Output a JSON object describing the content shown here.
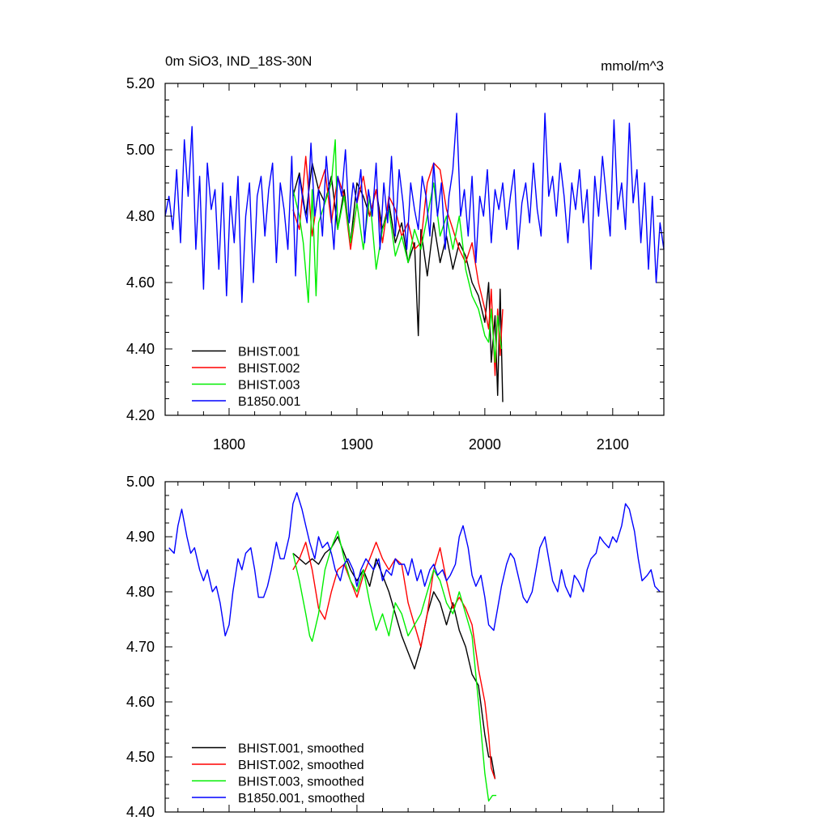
{
  "chart_data": [
    {
      "type": "line",
      "title": "0m SiO3, IND_18S-30N",
      "units": "mmol/m^3",
      "xlim": [
        1750,
        2140
      ],
      "ylim": [
        4.2,
        5.2
      ],
      "x_ticks": [
        1800,
        1900,
        2000,
        2100
      ],
      "y_ticks": [
        4.2,
        4.4,
        4.6,
        4.8,
        5.0,
        5.2
      ],
      "x_tick_labels": [
        "1800",
        "1900",
        "2000",
        "2100"
      ],
      "y_tick_labels": [
        "4.20",
        "4.40",
        "4.60",
        "4.80",
        "5.00",
        "5.20"
      ],
      "series": [
        {
          "name": "BHIST.001",
          "color": "#000000",
          "x": [
            1850,
            1855,
            1860,
            1865,
            1870,
            1875,
            1880,
            1885,
            1890,
            1895,
            1900,
            1905,
            1910,
            1915,
            1920,
            1925,
            1930,
            1935,
            1940,
            1945,
            1948,
            1950,
            1955,
            1960,
            1965,
            1970,
            1975,
            1980,
            1985,
            1990,
            1995,
            2000,
            2003,
            2005,
            2008,
            2010,
            2012,
            2014
          ],
          "values": [
            4.86,
            4.93,
            4.8,
            4.96,
            4.88,
            4.84,
            4.92,
            4.76,
            4.88,
            4.72,
            4.9,
            4.86,
            4.8,
            4.88,
            4.76,
            4.84,
            4.72,
            4.78,
            4.66,
            4.72,
            4.44,
            4.76,
            4.62,
            4.78,
            4.66,
            4.74,
            4.64,
            4.72,
            4.68,
            4.6,
            4.56,
            4.48,
            4.6,
            4.36,
            4.5,
            4.26,
            4.58,
            4.24
          ]
        },
        {
          "name": "BHIST.002",
          "color": "#ff0000",
          "x": [
            1850,
            1855,
            1860,
            1865,
            1870,
            1875,
            1880,
            1885,
            1890,
            1895,
            1900,
            1905,
            1910,
            1915,
            1920,
            1925,
            1930,
            1935,
            1940,
            1945,
            1950,
            1955,
            1960,
            1965,
            1970,
            1975,
            1980,
            1985,
            1990,
            1995,
            2000,
            2003,
            2005,
            2008,
            2010,
            2012,
            2014
          ],
          "values": [
            4.82,
            4.76,
            4.98,
            4.74,
            4.88,
            4.94,
            4.78,
            4.92,
            4.86,
            4.7,
            4.84,
            4.92,
            4.8,
            4.88,
            4.72,
            4.86,
            4.82,
            4.74,
            4.78,
            4.7,
            4.72,
            4.9,
            4.96,
            4.94,
            4.82,
            4.76,
            4.7,
            4.66,
            4.72,
            4.6,
            4.52,
            4.46,
            4.58,
            4.32,
            4.52,
            4.38,
            4.52
          ]
        },
        {
          "name": "BHIST.003",
          "color": "#00ee00",
          "x": [
            1850,
            1855,
            1858,
            1862,
            1865,
            1868,
            1870,
            1875,
            1880,
            1883,
            1885,
            1890,
            1895,
            1900,
            1905,
            1910,
            1915,
            1920,
            1925,
            1930,
            1935,
            1940,
            1945,
            1950,
            1955,
            1960,
            1965,
            1970,
            1975,
            1980,
            1985,
            1990,
            1995,
            2000,
            2003,
            2005,
            2008,
            2010,
            2013
          ],
          "values": [
            4.88,
            4.8,
            4.72,
            4.54,
            4.88,
            4.56,
            4.78,
            4.84,
            4.9,
            5.03,
            4.76,
            4.86,
            4.72,
            4.84,
            4.7,
            4.86,
            4.64,
            4.76,
            4.82,
            4.68,
            4.74,
            4.66,
            4.76,
            4.7,
            4.8,
            4.9,
            4.74,
            4.8,
            4.7,
            4.8,
            4.64,
            4.56,
            4.52,
            4.44,
            4.42,
            4.52,
            4.36,
            4.5,
            4.4
          ]
        },
        {
          "name": "B1850.001",
          "color": "#0000ff",
          "x": [
            1750,
            1753,
            1756,
            1759,
            1762,
            1765,
            1768,
            1771,
            1774,
            1777,
            1780,
            1783,
            1786,
            1789,
            1792,
            1795,
            1798,
            1801,
            1804,
            1807,
            1810,
            1813,
            1816,
            1819,
            1822,
            1825,
            1828,
            1831,
            1834,
            1837,
            1840,
            1843,
            1846,
            1849,
            1852,
            1855,
            1858,
            1861,
            1864,
            1867,
            1870,
            1873,
            1876,
            1879,
            1882,
            1885,
            1888,
            1891,
            1894,
            1897,
            1900,
            1903,
            1906,
            1909,
            1912,
            1915,
            1918,
            1921,
            1924,
            1927,
            1930,
            1933,
            1936,
            1939,
            1942,
            1945,
            1948,
            1951,
            1954,
            1957,
            1960,
            1963,
            1966,
            1969,
            1972,
            1975,
            1978,
            1981,
            1984,
            1987,
            1990,
            1993,
            1996,
            1999,
            2002,
            2005,
            2008,
            2011,
            2014,
            2017,
            2020,
            2023,
            2026,
            2029,
            2032,
            2035,
            2038,
            2041,
            2044,
            2047,
            2050,
            2053,
            2056,
            2059,
            2062,
            2065,
            2068,
            2071,
            2074,
            2077,
            2080,
            2083,
            2086,
            2089,
            2092,
            2095,
            2098,
            2101,
            2104,
            2107,
            2110,
            2113,
            2116,
            2119,
            2122,
            2125,
            2128,
            2131,
            2134,
            2137,
            2140
          ],
          "values": [
            4.8,
            4.86,
            4.76,
            4.94,
            4.72,
            5.03,
            4.86,
            5.07,
            4.7,
            4.92,
            4.58,
            4.96,
            4.82,
            4.88,
            4.64,
            4.9,
            4.56,
            4.86,
            4.72,
            4.92,
            4.54,
            4.8,
            4.9,
            4.6,
            4.86,
            4.92,
            4.74,
            4.88,
            4.96,
            4.66,
            4.9,
            4.82,
            4.7,
            4.98,
            4.62,
            4.92,
            4.84,
            4.78,
            5.02,
            4.8,
            4.88,
            4.74,
            4.98,
            4.84,
            4.7,
            4.92,
            4.86,
            5.0,
            4.78,
            4.9,
            4.84,
            4.94,
            4.72,
            4.88,
            4.8,
            4.96,
            4.7,
            4.9,
            4.78,
            4.98,
            4.74,
            4.94,
            4.84,
            4.7,
            4.9,
            4.82,
            4.76,
            4.92,
            4.86,
            4.74,
            4.96,
            4.8,
            4.9,
            4.7,
            4.86,
            4.94,
            5.11,
            4.8,
            4.88,
            4.74,
            4.92,
            4.66,
            4.86,
            4.8,
            4.94,
            4.72,
            4.88,
            4.82,
            4.9,
            4.76,
            4.86,
            4.94,
            4.7,
            4.84,
            4.9,
            4.78,
            4.96,
            4.82,
            4.74,
            5.11,
            4.86,
            4.92,
            4.8,
            4.96,
            4.86,
            4.72,
            4.9,
            4.82,
            4.94,
            4.78,
            4.88,
            4.64,
            4.92,
            4.8,
            4.98,
            4.86,
            4.74,
            5.09,
            4.82,
            4.9,
            4.76,
            5.08,
            4.84,
            4.94,
            4.72,
            4.9,
            4.64,
            4.86,
            4.6,
            4.78,
            4.7
          ]
        }
      ],
      "legend": [
        "BHIST.001",
        "BHIST.002",
        "BHIST.003",
        "B1850.001"
      ],
      "legend_position": "bottom-left"
    },
    {
      "type": "line",
      "xlim": [
        1750,
        2140
      ],
      "ylim": [
        4.4,
        5.0
      ],
      "y_ticks": [
        4.4,
        4.5,
        4.6,
        4.7,
        4.8,
        4.9,
        5.0
      ],
      "y_tick_labels": [
        "4.40",
        "4.50",
        "4.60",
        "4.70",
        "4.80",
        "4.90",
        "5.00"
      ],
      "series": [
        {
          "name": "BHIST.001, smoothed",
          "color": "#000000",
          "x": [
            1850,
            1855,
            1860,
            1865,
            1870,
            1875,
            1880,
            1885,
            1890,
            1895,
            1900,
            1905,
            1910,
            1915,
            1920,
            1925,
            1930,
            1935,
            1940,
            1945,
            1950,
            1955,
            1960,
            1965,
            1970,
            1975,
            1980,
            1985,
            1990,
            1995,
            2000,
            2003,
            2005,
            2008
          ],
          "values": [
            4.87,
            4.86,
            4.85,
            4.86,
            4.85,
            4.87,
            4.88,
            4.9,
            4.87,
            4.84,
            4.82,
            4.84,
            4.81,
            4.86,
            4.83,
            4.8,
            4.76,
            4.72,
            4.69,
            4.66,
            4.7,
            4.76,
            4.8,
            4.78,
            4.74,
            4.78,
            4.73,
            4.7,
            4.65,
            4.63,
            4.54,
            4.5,
            4.5,
            4.46
          ]
        },
        {
          "name": "BHIST.002, smoothed",
          "color": "#ff0000",
          "x": [
            1850,
            1855,
            1860,
            1865,
            1870,
            1875,
            1880,
            1885,
            1890,
            1895,
            1900,
            1905,
            1910,
            1915,
            1920,
            1925,
            1930,
            1935,
            1940,
            1945,
            1950,
            1955,
            1960,
            1965,
            1970,
            1975,
            1980,
            1985,
            1990,
            1995,
            2000,
            2003,
            2005,
            2008
          ],
          "values": [
            4.84,
            4.86,
            4.89,
            4.84,
            4.77,
            4.75,
            4.8,
            4.84,
            4.85,
            4.82,
            4.79,
            4.83,
            4.86,
            4.89,
            4.86,
            4.84,
            4.86,
            4.85,
            4.78,
            4.74,
            4.7,
            4.76,
            4.84,
            4.88,
            4.82,
            4.77,
            4.79,
            4.77,
            4.74,
            4.66,
            4.6,
            4.54,
            4.48,
            4.46
          ]
        },
        {
          "name": "BHIST.003, smoothed",
          "color": "#00ee00",
          "x": [
            1850,
            1855,
            1860,
            1863,
            1865,
            1870,
            1875,
            1880,
            1885,
            1890,
            1895,
            1900,
            1905,
            1910,
            1915,
            1920,
            1925,
            1930,
            1935,
            1940,
            1945,
            1950,
            1955,
            1960,
            1965,
            1970,
            1975,
            1980,
            1985,
            1990,
            1995,
            2000,
            2003,
            2006,
            2009
          ],
          "values": [
            4.87,
            4.82,
            4.76,
            4.72,
            4.71,
            4.76,
            4.84,
            4.88,
            4.91,
            4.86,
            4.82,
            4.8,
            4.84,
            4.78,
            4.73,
            4.76,
            4.72,
            4.78,
            4.76,
            4.72,
            4.74,
            4.76,
            4.8,
            4.84,
            4.82,
            4.78,
            4.76,
            4.8,
            4.76,
            4.72,
            4.6,
            4.47,
            4.42,
            4.43,
            4.43
          ]
        },
        {
          "name": "B1850.001, smoothed",
          "color": "#0000ff",
          "x": [
            1753,
            1757,
            1760,
            1763,
            1767,
            1770,
            1773,
            1777,
            1780,
            1783,
            1787,
            1790,
            1793,
            1797,
            1800,
            1803,
            1807,
            1810,
            1813,
            1817,
            1820,
            1823,
            1827,
            1830,
            1833,
            1837,
            1840,
            1843,
            1847,
            1850,
            1853,
            1857,
            1860,
            1863,
            1867,
            1870,
            1873,
            1877,
            1880,
            1883,
            1887,
            1890,
            1893,
            1897,
            1900,
            1903,
            1907,
            1910,
            1913,
            1917,
            1920,
            1923,
            1927,
            1930,
            1933,
            1937,
            1940,
            1943,
            1947,
            1950,
            1953,
            1957,
            1960,
            1963,
            1967,
            1970,
            1973,
            1977,
            1980,
            1983,
            1987,
            1990,
            1993,
            1997,
            2000,
            2003,
            2007,
            2010,
            2013,
            2017,
            2020,
            2023,
            2027,
            2030,
            2033,
            2037,
            2040,
            2043,
            2047,
            2050,
            2053,
            2057,
            2060,
            2063,
            2067,
            2070,
            2073,
            2077,
            2080,
            2083,
            2087,
            2090,
            2093,
            2097,
            2100,
            2103,
            2107,
            2110,
            2113,
            2117,
            2120,
            2123,
            2127,
            2130,
            2133,
            2137
          ],
          "values": [
            4.88,
            4.87,
            4.92,
            4.95,
            4.9,
            4.87,
            4.88,
            4.84,
            4.82,
            4.84,
            4.8,
            4.81,
            4.78,
            4.72,
            4.74,
            4.8,
            4.86,
            4.84,
            4.87,
            4.88,
            4.84,
            4.79,
            4.79,
            4.81,
            4.84,
            4.89,
            4.86,
            4.86,
            4.9,
            4.96,
            4.98,
            4.95,
            4.92,
            4.89,
            4.86,
            4.9,
            4.88,
            4.89,
            4.87,
            4.84,
            4.82,
            4.85,
            4.86,
            4.84,
            4.81,
            4.84,
            4.86,
            4.85,
            4.84,
            4.86,
            4.82,
            4.84,
            4.83,
            4.86,
            4.85,
            4.85,
            4.83,
            4.86,
            4.82,
            4.84,
            4.81,
            4.84,
            4.85,
            4.83,
            4.84,
            4.82,
            4.83,
            4.85,
            4.9,
            4.92,
            4.88,
            4.83,
            4.81,
            4.83,
            4.79,
            4.74,
            4.73,
            4.77,
            4.81,
            4.85,
            4.87,
            4.86,
            4.82,
            4.79,
            4.78,
            4.8,
            4.84,
            4.88,
            4.9,
            4.86,
            4.82,
            4.8,
            4.84,
            4.81,
            4.79,
            4.83,
            4.82,
            4.8,
            4.84,
            4.86,
            4.87,
            4.9,
            4.89,
            4.88,
            4.9,
            4.89,
            4.92,
            4.96,
            4.95,
            4.91,
            4.86,
            4.82,
            4.83,
            4.84,
            4.81,
            4.8
          ]
        }
      ],
      "legend": [
        "BHIST.001, smoothed",
        "BHIST.002, smoothed",
        "BHIST.003, smoothed",
        "B1850.001, smoothed"
      ],
      "legend_position": "bottom-left"
    }
  ]
}
